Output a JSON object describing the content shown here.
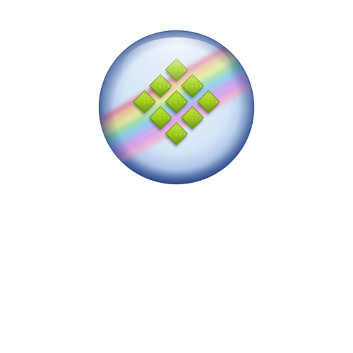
{
  "image": {
    "background_color": "#ffffff",
    "subject": "glossy-orb-icon"
  },
  "orb": {
    "sky_inner": "#dcecf8",
    "sky_outer": "#4a6aa8",
    "rim_dark": "#2e4a8e"
  },
  "rainbow": {
    "stripe_colors": [
      "#e06a88",
      "#f2c070",
      "#e4e87a",
      "#86d88a",
      "#78c0e8",
      "#b49ae6",
      "#e08ae0"
    ]
  },
  "checker": {
    "tile_color": "#9ecb1c",
    "tile_highlight": "#c8ea4a",
    "tile_shadow": "#5a7d08",
    "tile_count": 9
  }
}
